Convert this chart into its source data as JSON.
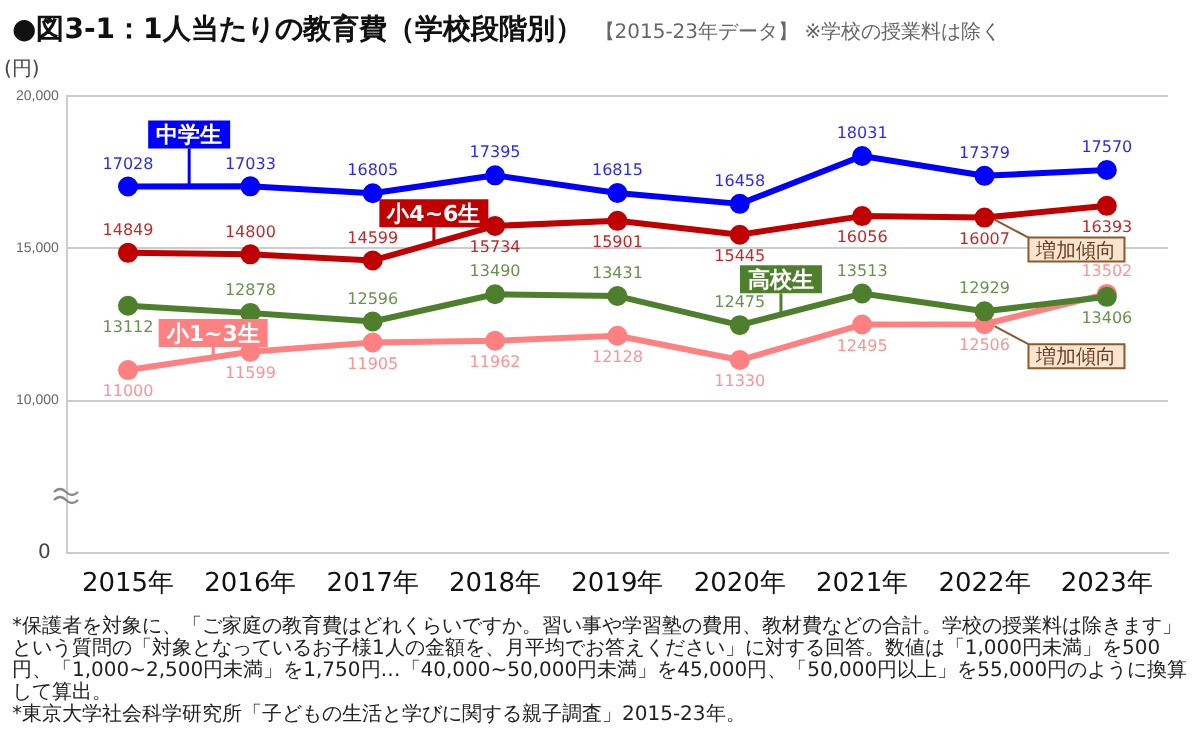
{
  "chart_data": {
    "type": "line",
    "title": "●図3-1：1人当たりの教育費（学校段階別）",
    "subtitle": "【2015-23年データ】 ※学校の授業料は除く",
    "ylabel": "(円)",
    "categories": [
      "2015年",
      "2016年",
      "2017年",
      "2018年",
      "2019年",
      "2020年",
      "2021年",
      "2022年",
      "2023年"
    ],
    "series": [
      {
        "name": "中学生",
        "color": "#0000ff",
        "values": [
          17028,
          17033,
          16805,
          17395,
          16815,
          16458,
          18031,
          17379,
          17570
        ]
      },
      {
        "name": "小4~6生",
        "color": "#c00000",
        "values": [
          14849,
          14800,
          14599,
          15734,
          15901,
          15445,
          16056,
          16007,
          16393
        ]
      },
      {
        "name": "高校生",
        "color": "#4e7f2c",
        "values": [
          13112,
          12878,
          12596,
          13490,
          13431,
          12475,
          13513,
          12929,
          13406
        ]
      },
      {
        "name": "小1~3生",
        "color": "#ff8080",
        "values": [
          11000,
          11599,
          11905,
          11962,
          12128,
          11330,
          12495,
          12506,
          13502
        ]
      }
    ],
    "ylim": [
      5000,
      20000
    ],
    "yticks": [
      {
        "value": 10000,
        "label": "10,000"
      },
      {
        "value": 15000,
        "label": "15,000"
      },
      {
        "value": 20000,
        "label": "20,000"
      }
    ],
    "grid": "y",
    "legend": false,
    "marker": "circle",
    "line_style": "solid",
    "data_labels": true,
    "annotations": [
      "0",
      {
        "text": "増加傾向",
        "x": "2022年",
        "y": 16007
      },
      {
        "text": "増加傾向",
        "x": "2022年",
        "y": 12506
      },
      "*保護者を対象に、「ご家庭の教育費はどれくらいですか。習い事や学習塾の費用、教材費などの合計。学校の授業料は除きます」という質問の「対象となっているお子様1人の金額を、月平均でお答えください」に対する回答。数値は「1,000円未満」を500円、「1,000~2,500円未満」を1,750円…「40,000~50,000円未満」を45,000円、「50,000円以上」を55,000円のように換算して算出。",
      "*東京大学社会科学研究所「子どもの生活と学びに関する親子調査」2015-23年。"
    ]
  }
}
